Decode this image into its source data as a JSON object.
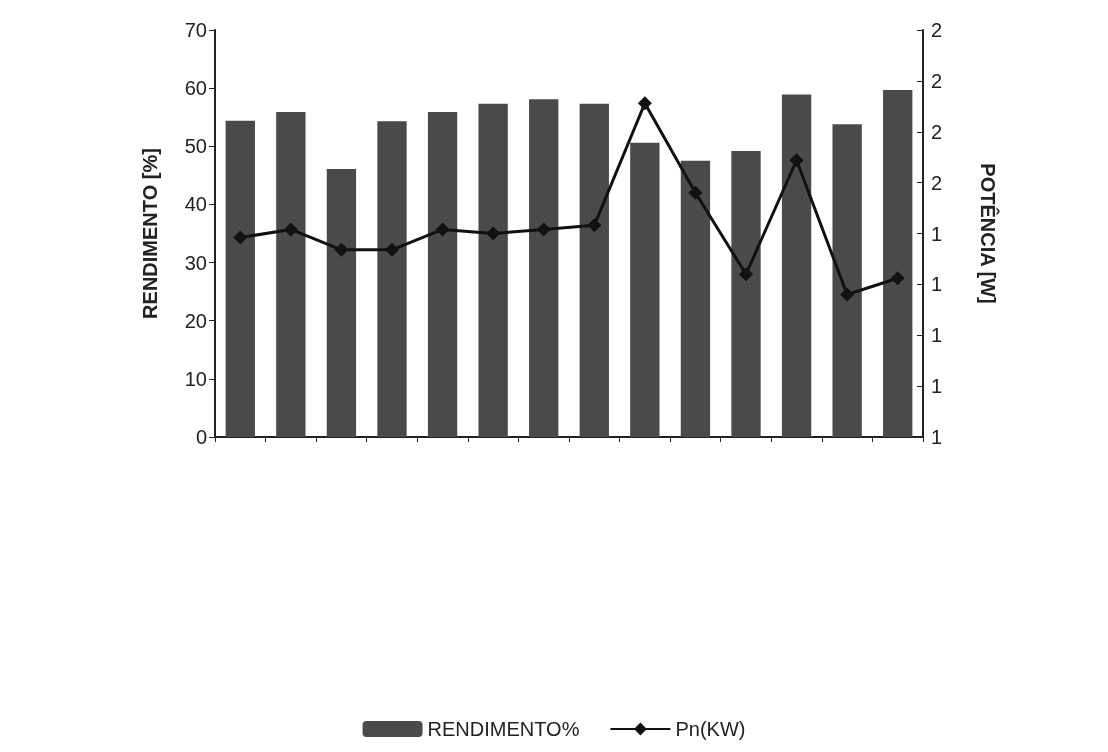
{
  "chart_data": {
    "type": "bar",
    "ylabel": "RENDIMENTO [%]",
    "y2label": "POTÊNCIA [W]",
    "categories": [
      null,
      null,
      null,
      null,
      null,
      null,
      null,
      null,
      null,
      null,
      null,
      null,
      null,
      null
    ],
    "series": [
      {
        "name": "RENDIMENTO%",
        "color": "#4a4a4a",
        "values": [
          54.4,
          55.9,
          46.1,
          54.3,
          55.9,
          57.3,
          58.1,
          57.3,
          50.6,
          47.5,
          49.2,
          58.9,
          53.8,
          59.7
        ]
      },
      {
        "name": "Pn(KW)",
        "type": "line",
        "axis": "y2",
        "color": "#111111",
        "marker": "diamond",
        "values": [
          1.49,
          1.51,
          1.46,
          1.46,
          1.51,
          1.5,
          1.51,
          1.52,
          1.82,
          1.6,
          1.4,
          1.68,
          1.35,
          1.39
        ]
      }
    ],
    "ylim": [
      0,
      70
    ],
    "yticks": [
      0,
      10,
      20,
      30,
      40,
      50,
      60,
      70
    ],
    "y2lim": [
      1,
      2
    ],
    "y2ticks": [
      1,
      {
        "value": 1.125,
        "label": "1"
      },
      {
        "value": 1.25,
        "label": "1"
      },
      {
        "value": 1.375,
        "label": "1"
      },
      {
        "value": 1.5,
        "label": "1"
      },
      {
        "value": 1.625,
        "label": "2"
      },
      {
        "value": 1.75,
        "label": "2"
      },
      {
        "value": 1.875,
        "label": "2"
      },
      2
    ],
    "grid": false,
    "legend": "bottom"
  }
}
